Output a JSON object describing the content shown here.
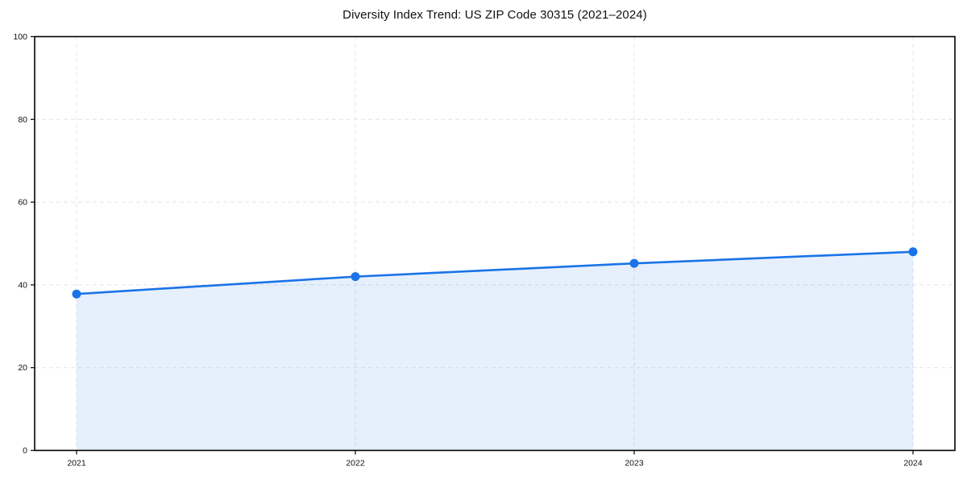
{
  "page": {
    "background": "#ffffff"
  },
  "chart_data": {
    "type": "line",
    "title": "Diversity Index Trend: US ZIP Code 30315 (2021–2024)",
    "categories": [
      "2021",
      "2022",
      "2023",
      "2024"
    ],
    "series": [
      {
        "name": "Diversity Index",
        "values": [
          37.8,
          42,
          45.2,
          48
        ]
      }
    ],
    "xlabel": "",
    "ylabel": "",
    "ylim": [
      0,
      100
    ],
    "y_ticks": [
      0,
      20,
      40,
      60,
      80,
      100
    ],
    "grid": true,
    "grid_style": "dashed",
    "grid_color": "#e4e4e4",
    "legend": false,
    "line_color": "#1a73e8",
    "marker": "circle",
    "fill": "area",
    "fill_opacity": 0.11,
    "axis_color": "#000000",
    "text_color": "#111111"
  }
}
